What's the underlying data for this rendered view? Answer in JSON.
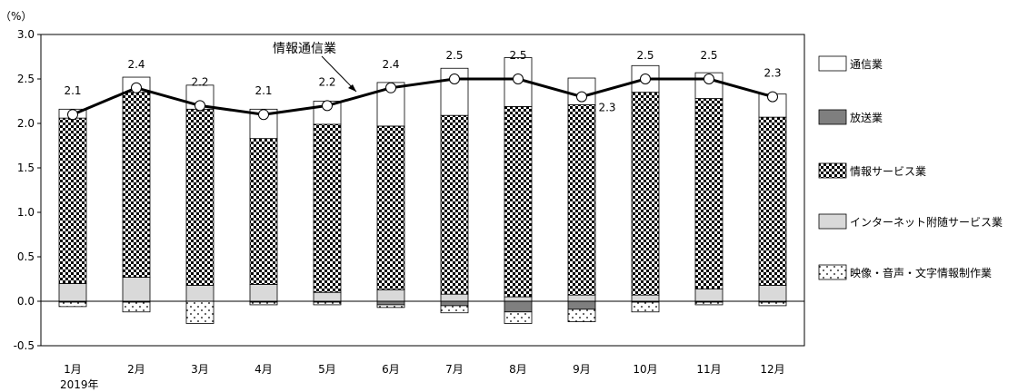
{
  "chart_data": {
    "type": "bar",
    "unit_label": "（%）",
    "year_label": "2019年",
    "ylim": [
      -0.5,
      3.0
    ],
    "yticks": [
      "3.0",
      "2.5",
      "2.0",
      "1.5",
      "1.0",
      "0.5",
      "0.0",
      "-0.5"
    ],
    "ytick_values": [
      3.0,
      2.5,
      2.0,
      1.5,
      1.0,
      0.5,
      0.0,
      -0.5
    ],
    "categories": [
      "1月",
      "2月",
      "3月",
      "4月",
      "5月",
      "6月",
      "7月",
      "8月",
      "9月",
      "10月",
      "11月",
      "12月"
    ],
    "series": [
      {
        "name": "インターネット附随サービス業",
        "key": "internet",
        "values": [
          0.2,
          0.27,
          0.18,
          0.19,
          0.1,
          0.13,
          0.08,
          0.05,
          0.07,
          0.07,
          0.14,
          0.18
        ]
      },
      {
        "name": "情報サービス業",
        "key": "info",
        "values": [
          1.86,
          2.08,
          1.98,
          1.64,
          1.89,
          1.84,
          2.01,
          2.14,
          2.14,
          2.28,
          2.14,
          1.89
        ]
      },
      {
        "name": "通信業",
        "key": "telecom",
        "values": [
          0.1,
          0.17,
          0.27,
          0.33,
          0.26,
          0.49,
          0.53,
          0.55,
          0.3,
          0.3,
          0.29,
          0.26
        ]
      },
      {
        "name": "放送業",
        "key": "broadcast",
        "values": [
          -0.01,
          -0.01,
          0.0,
          -0.01,
          -0.01,
          -0.04,
          -0.05,
          -0.12,
          -0.09,
          -0.01,
          -0.01,
          -0.01
        ]
      },
      {
        "name": "映像・音声・文字情報制作業",
        "key": "media",
        "values": [
          -0.05,
          -0.11,
          -0.25,
          -0.03,
          -0.03,
          -0.03,
          -0.08,
          -0.13,
          -0.14,
          -0.11,
          -0.03,
          -0.04
        ]
      }
    ],
    "line": {
      "name": "情報通信業",
      "values": [
        2.1,
        2.4,
        2.2,
        2.1,
        2.2,
        2.4,
        2.5,
        2.5,
        2.3,
        2.5,
        2.5,
        2.3
      ],
      "labels": [
        "2.1",
        "2.4",
        "2.2",
        "2.1",
        "2.2",
        "2.4",
        "2.5",
        "2.5",
        "2.3",
        "2.5",
        "2.5",
        "2.3"
      ]
    },
    "legend": [
      {
        "label": "通信業",
        "key": "telecom"
      },
      {
        "label": "放送業",
        "key": "broadcast"
      },
      {
        "label": "情報サービス業",
        "key": "info"
      },
      {
        "label": "インターネット附随サービス業",
        "key": "internet"
      },
      {
        "label": "映像・音声・文字情報制作業",
        "key": "media"
      }
    ],
    "colors": {
      "telecom": "#ffffff",
      "broadcast": "#7f7f7f",
      "internet": "#d9d9d9",
      "line": "#000000"
    }
  }
}
